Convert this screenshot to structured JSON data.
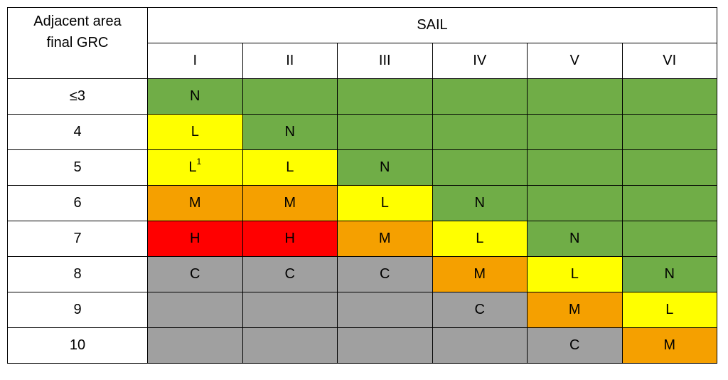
{
  "header": {
    "row_label_lines": [
      "Adjacent area",
      "final GRC"
    ],
    "group_title": "SAIL",
    "columns": [
      "I",
      "II",
      "III",
      "IV",
      "V",
      "VI"
    ]
  },
  "table": {
    "rows": [
      {
        "grc": "≤3",
        "cells": [
          {
            "text": "N",
            "color": "#70ad47"
          },
          {
            "color": "#70ad47"
          },
          {
            "color": "#70ad47"
          },
          {
            "color": "#70ad47"
          },
          {
            "color": "#70ad47"
          },
          {
            "color": "#70ad47"
          }
        ]
      },
      {
        "grc": "4",
        "cells": [
          {
            "text": "L",
            "color": "#ffff00"
          },
          {
            "text": "N",
            "color": "#70ad47"
          },
          {
            "color": "#70ad47"
          },
          {
            "color": "#70ad47"
          },
          {
            "color": "#70ad47"
          },
          {
            "color": "#70ad47"
          }
        ]
      },
      {
        "grc": "5",
        "cells": [
          {
            "text": "L",
            "sup": "1",
            "color": "#ffff00"
          },
          {
            "text": "L",
            "color": "#ffff00"
          },
          {
            "text": "N",
            "color": "#70ad47"
          },
          {
            "color": "#70ad47"
          },
          {
            "color": "#70ad47"
          },
          {
            "color": "#70ad47"
          }
        ]
      },
      {
        "grc": "6",
        "cells": [
          {
            "text": "M",
            "color": "#f5a000"
          },
          {
            "text": "M",
            "color": "#f5a000"
          },
          {
            "text": "L",
            "color": "#ffff00"
          },
          {
            "text": "N",
            "color": "#70ad47"
          },
          {
            "color": "#70ad47"
          },
          {
            "color": "#70ad47"
          }
        ]
      },
      {
        "grc": "7",
        "cells": [
          {
            "text": "H",
            "color": "#ff0000"
          },
          {
            "text": "H",
            "color": "#ff0000"
          },
          {
            "text": "M",
            "color": "#f5a000"
          },
          {
            "text": "L",
            "color": "#ffff00"
          },
          {
            "text": "N",
            "color": "#70ad47"
          },
          {
            "color": "#70ad47"
          }
        ]
      },
      {
        "grc": "8",
        "cells": [
          {
            "text": "C",
            "color": "#a0a0a0"
          },
          {
            "text": "C",
            "color": "#a0a0a0"
          },
          {
            "text": "C",
            "color": "#a0a0a0"
          },
          {
            "text": "M",
            "color": "#f5a000"
          },
          {
            "text": "L",
            "color": "#ffff00"
          },
          {
            "text": "N",
            "color": "#70ad47"
          }
        ]
      },
      {
        "grc": "9",
        "cells": [
          {
            "color": "#a0a0a0"
          },
          {
            "color": "#a0a0a0"
          },
          {
            "color": "#a0a0a0"
          },
          {
            "text": "C",
            "color": "#a0a0a0"
          },
          {
            "text": "M",
            "color": "#f5a000"
          },
          {
            "text": "L",
            "color": "#ffff00"
          }
        ]
      },
      {
        "grc": "10",
        "cells": [
          {
            "color": "#a0a0a0"
          },
          {
            "color": "#a0a0a0"
          },
          {
            "color": "#a0a0a0"
          },
          {
            "color": "#a0a0a0"
          },
          {
            "text": "C",
            "color": "#a0a0a0"
          },
          {
            "text": "M",
            "color": "#f5a000"
          }
        ]
      }
    ]
  }
}
